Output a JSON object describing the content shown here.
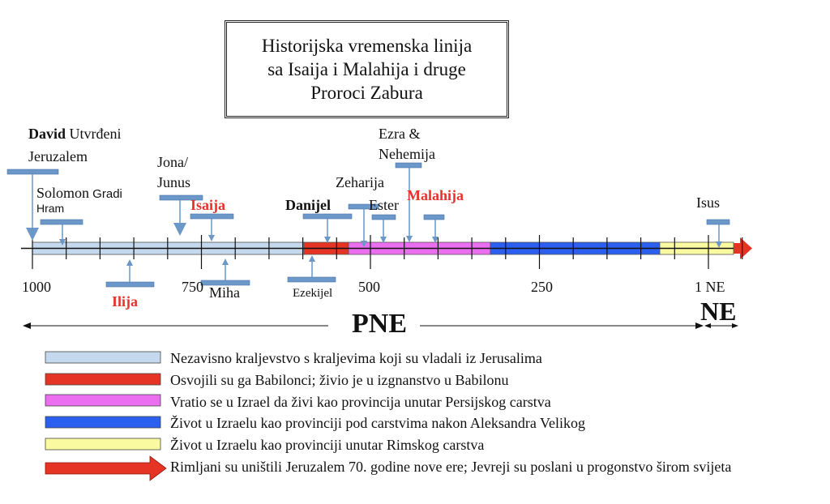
{
  "title": {
    "line1": "Historijska vremenska linija",
    "line2": "sa Isaija i Malahija i druge",
    "line3": "Proroci Zabura"
  },
  "events": {
    "david_bold": "David",
    "david_rest": " Utvrđeni",
    "david_line2": "Jeruzalem",
    "solomon": "Solomon",
    "solomon_small": " Gradi",
    "solomon_line2": "Hram",
    "jona_line1": "Jona/",
    "jona_line2": "Junus",
    "isaija": "Isaija",
    "ilija": "Ilija",
    "miha": "Miha",
    "ezekijel": "Ezekijel",
    "danijel": "Danijel",
    "zeharija": "Zeharija",
    "ester": "Ester",
    "ezra_line1": "Ezra &",
    "ezra_line2": "Nehemija",
    "malahija": "Malahija",
    "isus": "Isus"
  },
  "axis": {
    "ticks": [
      "1000",
      "750",
      "500",
      "250",
      "1 NE"
    ],
    "pne": "PNE",
    "ne": "NE"
  },
  "periods": [
    {
      "color": "#c5d9ee",
      "label": "Nezavisno kraljevstvo s kraljevima koji su vladali iz Jerusalima"
    },
    {
      "color": "#e53424",
      "label": "Osvojili su ga Babilonci; živio je u izgnanstvo u Babilonu"
    },
    {
      "color": "#ec6ef0",
      "label": "Vratio se u Izrael da živi kao provincija unutar Persijskog carstva"
    },
    {
      "color": "#2a5ff0",
      "label": "Život u Izraelu kao provinciji pod carstvima nakon Aleksandra Velikog"
    },
    {
      "color": "#fafaa0",
      "label": "Život u Izraelu kao provinciji unutar Rimskog carstva"
    },
    {
      "color": "#e53424",
      "label": "Rimljani su uništili Jeruzalem 70. godine nove ere; Jevreji su poslani u progonstvo širom svijeta"
    }
  ],
  "callout_color": "#6b97c9"
}
